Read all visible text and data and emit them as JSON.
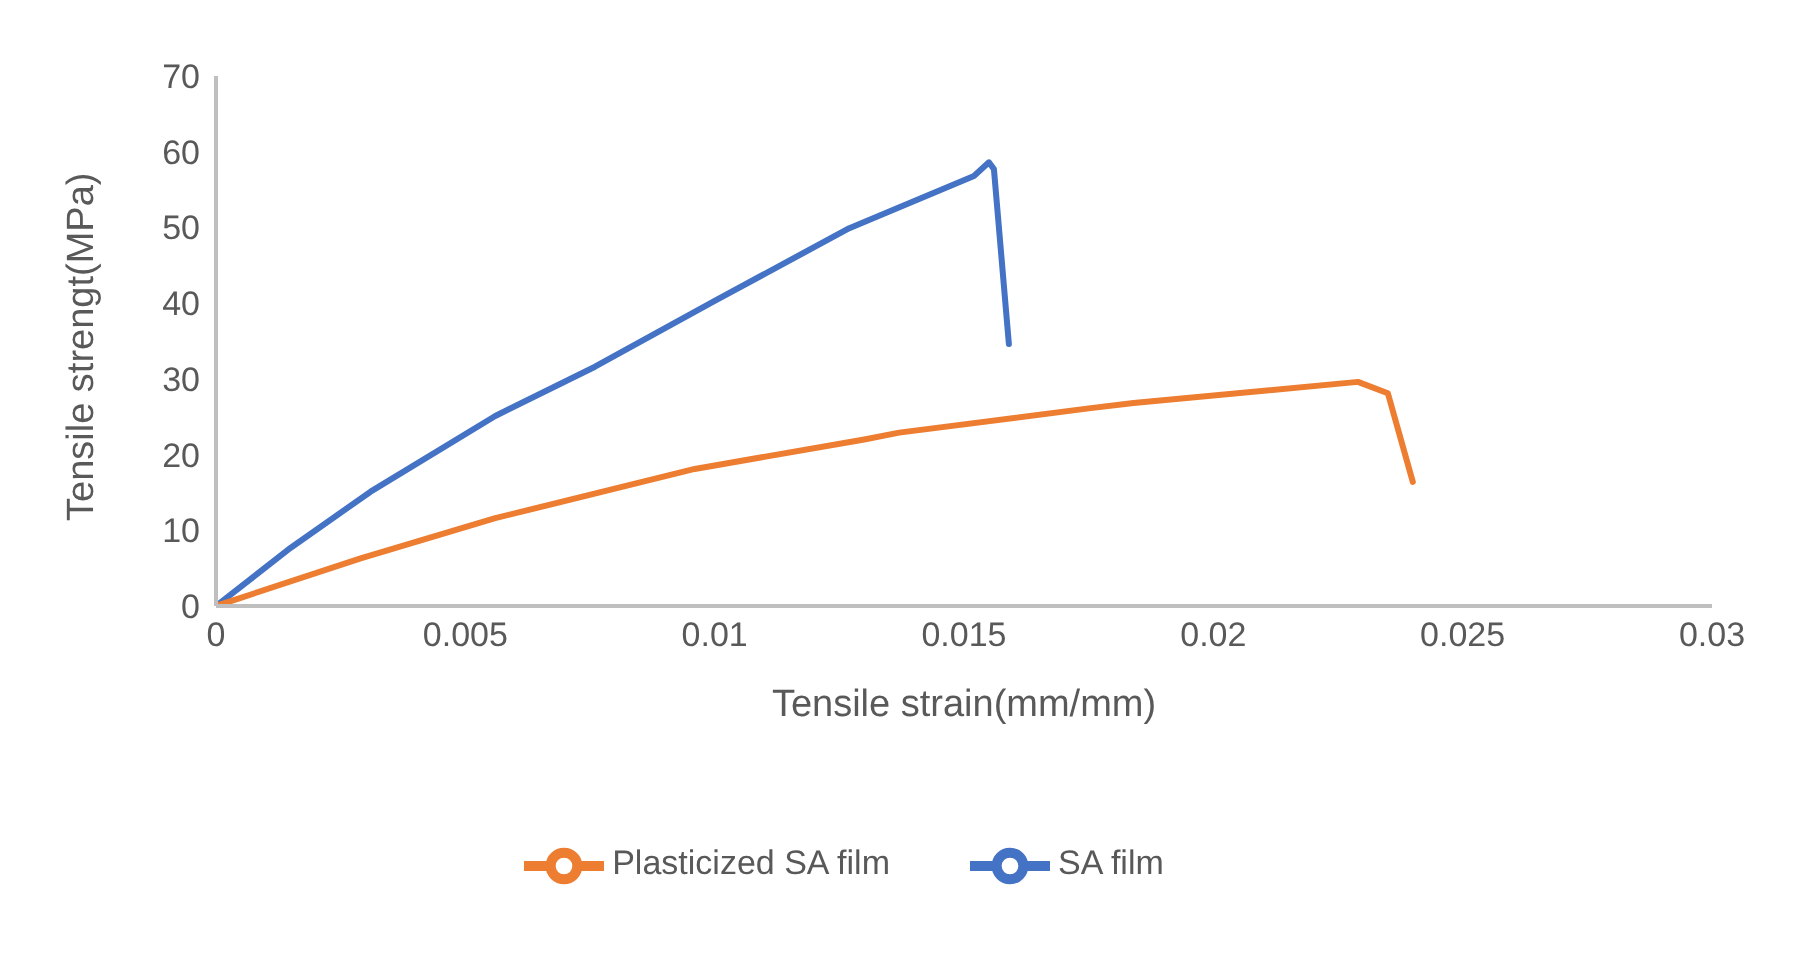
{
  "chart_data": {
    "type": "line",
    "xlabel": "Tensile strain(mm/mm)",
    "ylabel": "Tensile strengt(MPa)",
    "xlim": [
      0,
      0.03
    ],
    "xticks": [
      0,
      0.005,
      0.01,
      0.015,
      0.02,
      0.025,
      0.03
    ],
    "ylim": [
      0,
      70
    ],
    "yticks": [
      0,
      10,
      20,
      30,
      40,
      50,
      60,
      70
    ],
    "grid": false,
    "legend": "bottom",
    "marker": "none",
    "line_style": "solid",
    "series": [
      {
        "name": "SA film",
        "color": "#4472c4",
        "x": [
          0,
          0.0015,
          0.0031,
          0.0056,
          0.0076,
          0.01,
          0.0127,
          0.0152,
          0.0155,
          0.0156,
          0.0159
        ],
        "values": [
          0,
          7.7,
          15.1,
          25.1,
          31.6,
          40.3,
          49.9,
          56.8,
          58.6,
          57.7,
          34.6
        ]
      },
      {
        "name": "Plasticized SA film",
        "color": "#ed7d31",
        "x": [
          0,
          0.0029,
          0.0056,
          0.0096,
          0.013,
          0.0137,
          0.0175,
          0.0184,
          0.0229,
          0.0235,
          0.024
        ],
        "values": [
          0,
          6.3,
          11.6,
          18.1,
          22.0,
          22.9,
          26.1,
          26.8,
          29.6,
          28.1,
          16.4
        ]
      }
    ]
  }
}
